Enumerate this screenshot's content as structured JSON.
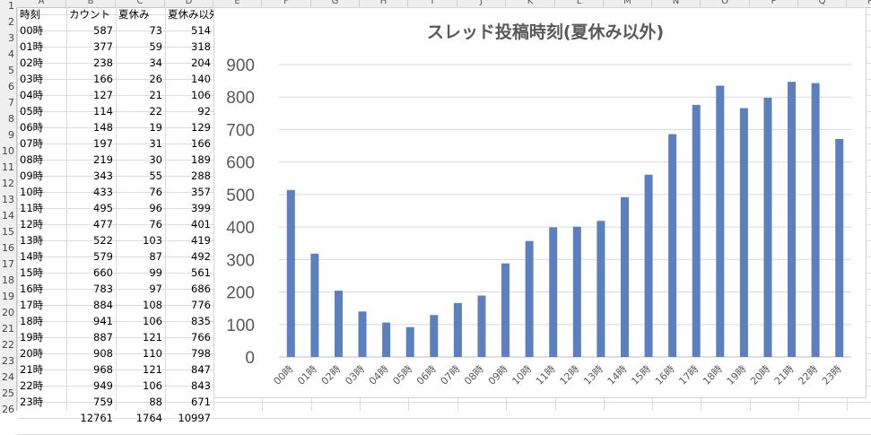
{
  "spreadsheet": {
    "column_letters": [
      "A",
      "B",
      "C",
      "D",
      "E",
      "F",
      "G",
      "H",
      "I",
      "J",
      "K",
      "L",
      "M",
      "N",
      "O",
      "P",
      "Q",
      "R"
    ],
    "row_numbers": [
      "1",
      "2",
      "3",
      "4",
      "5",
      "6",
      "7",
      "8",
      "9",
      "10",
      "11",
      "12",
      "13",
      "14",
      "15",
      "16",
      "17",
      "18",
      "19",
      "20",
      "21",
      "22",
      "23",
      "24",
      "25",
      "26"
    ],
    "headers": [
      "時刻",
      "カウント",
      "夏休み",
      "夏休み以外"
    ],
    "rows": [
      [
        "00時",
        "587",
        "73",
        "514"
      ],
      [
        "01時",
        "377",
        "59",
        "318"
      ],
      [
        "02時",
        "238",
        "34",
        "204"
      ],
      [
        "03時",
        "166",
        "26",
        "140"
      ],
      [
        "04時",
        "127",
        "21",
        "106"
      ],
      [
        "05時",
        "114",
        "22",
        "92"
      ],
      [
        "06時",
        "148",
        "19",
        "129"
      ],
      [
        "07時",
        "197",
        "31",
        "166"
      ],
      [
        "08時",
        "219",
        "30",
        "189"
      ],
      [
        "09時",
        "343",
        "55",
        "288"
      ],
      [
        "10時",
        "433",
        "76",
        "357"
      ],
      [
        "11時",
        "495",
        "96",
        "399"
      ],
      [
        "12時",
        "477",
        "76",
        "401"
      ],
      [
        "13時",
        "522",
        "103",
        "419"
      ],
      [
        "14時",
        "579",
        "87",
        "492"
      ],
      [
        "15時",
        "660",
        "99",
        "561"
      ],
      [
        "16時",
        "783",
        "97",
        "686"
      ],
      [
        "17時",
        "884",
        "108",
        "776"
      ],
      [
        "18時",
        "941",
        "106",
        "835"
      ],
      [
        "19時",
        "887",
        "121",
        "766"
      ],
      [
        "20時",
        "908",
        "110",
        "798"
      ],
      [
        "21時",
        "968",
        "121",
        "847"
      ],
      [
        "22時",
        "949",
        "106",
        "843"
      ],
      [
        "23時",
        "759",
        "88",
        "671"
      ]
    ],
    "totals": [
      "",
      "12761",
      "1764",
      "10997"
    ]
  },
  "chart_data": {
    "type": "bar",
    "title": "スレッド投稿時刻(夏休み以外)",
    "categories": [
      "00時",
      "01時",
      "02時",
      "03時",
      "04時",
      "05時",
      "06時",
      "07時",
      "08時",
      "09時",
      "10時",
      "11時",
      "12時",
      "13時",
      "14時",
      "15時",
      "16時",
      "17時",
      "18時",
      "19時",
      "20時",
      "21時",
      "22時",
      "23時"
    ],
    "values": [
      514,
      318,
      204,
      140,
      106,
      92,
      129,
      166,
      189,
      288,
      357,
      399,
      401,
      419,
      492,
      561,
      686,
      776,
      835,
      766,
      798,
      847,
      843,
      671
    ],
    "ylim": [
      0,
      900
    ],
    "yticks": [
      "0",
      "100",
      "200",
      "300",
      "400",
      "500",
      "600",
      "700",
      "800",
      "900"
    ],
    "grid": true,
    "legend": "none",
    "bar_color": "#5b7fbf",
    "gridline_color": "#d9d9d9"
  }
}
